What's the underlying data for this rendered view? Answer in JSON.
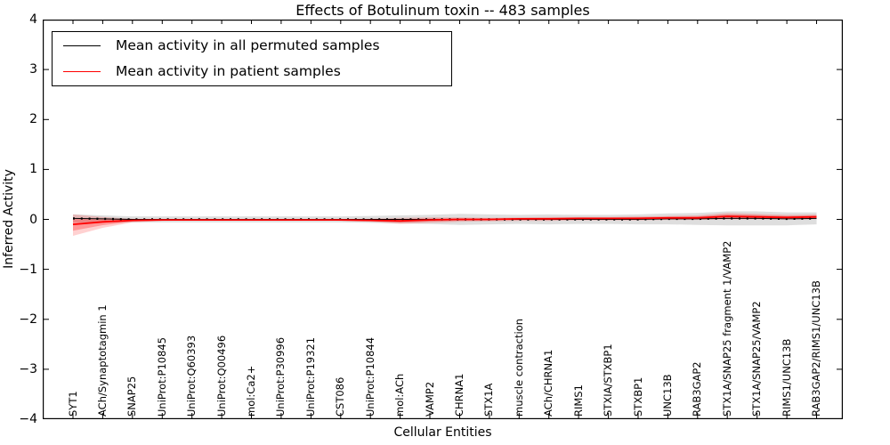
{
  "chart_data": {
    "type": "line",
    "title": "Effects of Botulinum toxin -- 483 samples",
    "xlabel": "Cellular Entities",
    "ylabel": "Inferred Activity",
    "ylim": [
      -4,
      4
    ],
    "yticks": [
      4,
      3,
      2,
      1,
      0,
      -1,
      -2,
      -3,
      -4
    ],
    "grid": false,
    "legend_position": "upper left",
    "categories": [
      "SYT1",
      "ACh/Synaptotagmin 1",
      "SNAP25",
      "UniProt:P10845",
      "UniProt:Q60393",
      "UniProt:Q00496",
      "mol:Ca2+",
      "UniProt:P30996",
      "UniProt:P19321",
      "CST086",
      "UniProt:P10844",
      "mol:ACh",
      "VAMP2",
      "CHRNA1",
      "STX1A",
      "muscle contraction",
      "ACh/CHRNA1",
      "RIMS1",
      "STXIA/STXBP1",
      "STXBP1",
      "UNC13B",
      "RAB3GAP2",
      "STX1A/SNAP25 fragment 1/VAMP2",
      "STX1A/SNAP25/VAMP2",
      "RIMS1/UNC13B",
      "RAB3GAP2/RIMS1/UNC13B"
    ],
    "series": [
      {
        "name": "Mean activity in all permuted samples",
        "color": "#000000",
        "style": "solid-with-dot-markers",
        "values": [
          0.02,
          0.01,
          0,
          0,
          0,
          0,
          0,
          0,
          0,
          0,
          0,
          0,
          0,
          0,
          0,
          0,
          0,
          0,
          0,
          0,
          0.01,
          0.01,
          0.02,
          0.02,
          0.01,
          0.02
        ],
        "band": {
          "color": "#000000",
          "opacity": 0.13,
          "upper": [
            0.1,
            0.08,
            0.06,
            0.06,
            0.06,
            0.06,
            0.06,
            0.06,
            0.06,
            0.06,
            0.07,
            0.08,
            0.09,
            0.11,
            0.1,
            0.09,
            0.1,
            0.09,
            0.09,
            0.1,
            0.12,
            0.13,
            0.16,
            0.16,
            0.14,
            0.14
          ],
          "lower": [
            -0.06,
            -0.06,
            -0.06,
            -0.06,
            -0.06,
            -0.06,
            -0.06,
            -0.06,
            -0.06,
            -0.06,
            -0.07,
            -0.08,
            -0.09,
            -0.11,
            -0.1,
            -0.09,
            -0.1,
            -0.09,
            -0.09,
            -0.1,
            -0.1,
            -0.11,
            -0.12,
            -0.12,
            -0.12,
            -0.1
          ]
        }
      },
      {
        "name": "Mean activity in patient samples",
        "color": "#ff0000",
        "style": "solid",
        "values": [
          -0.1,
          -0.05,
          -0.02,
          -0.01,
          -0.01,
          -0.01,
          -0.01,
          -0.01,
          -0.01,
          -0.01,
          -0.02,
          -0.03,
          -0.01,
          0,
          0,
          0.01,
          0.01,
          0.02,
          0.02,
          0.02,
          0.03,
          0.03,
          0.06,
          0.05,
          0.04,
          0.05
        ],
        "band": {
          "color": "#ff0000",
          "opacity": 0.18,
          "upper": [
            0.1,
            0.05,
            0.01,
            0,
            0,
            0,
            0,
            0,
            0,
            0,
            0.01,
            0.03,
            0.04,
            0.04,
            0.03,
            0.04,
            0.05,
            0.05,
            0.05,
            0.06,
            0.07,
            0.08,
            0.13,
            0.11,
            0.09,
            0.1
          ],
          "lower": [
            -0.33,
            -0.17,
            -0.06,
            -0.03,
            -0.02,
            -0.02,
            -0.02,
            -0.02,
            -0.02,
            -0.03,
            -0.05,
            -0.09,
            -0.07,
            -0.05,
            -0.04,
            -0.03,
            -0.03,
            -0.02,
            -0.02,
            -0.02,
            -0.01,
            -0.01,
            0,
            0,
            0,
            0
          ]
        }
      }
    ]
  }
}
